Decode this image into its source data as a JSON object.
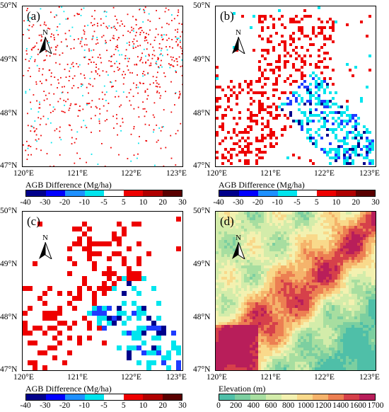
{
  "panels": [
    {
      "id": "a",
      "label": "(a)",
      "kind": "difference",
      "density": "sparse scattered single pixels (mostly red, some cyan)",
      "lat_ticks": [
        "50°N",
        "49°N",
        "48°N",
        "47°N"
      ],
      "lon_ticks": [
        "120°E",
        "121°E",
        "122°E",
        "123°E"
      ],
      "colorbar": {
        "title": "AGB Difference (Mg/ha)",
        "ticks": [
          "-40",
          "-30",
          "-20",
          "-10",
          "-5",
          "5",
          "10",
          "20",
          "30"
        ],
        "colors": [
          "#00008b",
          "#0000ff",
          "#1e90ff",
          "#00e5ee",
          "#ffffff",
          "#ee0000",
          "#b00000",
          "#5a0000"
        ]
      }
    },
    {
      "id": "b",
      "label": "(b)",
      "kind": "difference",
      "density": "small blocks; red in west, cyan/blue along southeast",
      "lat_ticks": [
        "50°N",
        "49°N",
        "48°N",
        "47°N"
      ],
      "lon_ticks": [
        "120°E",
        "121°E",
        "122°E",
        "123°E"
      ],
      "colorbar": {
        "title": "AGB Difference (Mg/ha)",
        "ticks": [
          "-40",
          "-30",
          "-20",
          "-10",
          "-5",
          "5",
          "10",
          "20",
          "30"
        ],
        "colors": [
          "#00008b",
          "#0000ff",
          "#1e90ff",
          "#00e5ee",
          "#ffffff",
          "#ee0000",
          "#b00000",
          "#5a0000"
        ]
      }
    },
    {
      "id": "c",
      "label": "(c)",
      "kind": "difference",
      "density": "larger blocks; red in west, cyan/blue along southeast",
      "lat_ticks": [
        "50°N",
        "49°N",
        "48°N",
        "47°N"
      ],
      "lon_ticks": [
        "120°E",
        "121°E",
        "122°E",
        "123°E"
      ],
      "colorbar": {
        "title": "AGB Difference (Mg/ha)",
        "ticks": [
          "-40",
          "-30",
          "-20",
          "-10",
          "-5",
          "5",
          "10",
          "20",
          "30"
        ],
        "colors": [
          "#00008b",
          "#0000ff",
          "#1e90ff",
          "#00e5ee",
          "#ffffff",
          "#ee0000",
          "#b00000",
          "#5a0000"
        ]
      }
    },
    {
      "id": "d",
      "label": "(d)",
      "kind": "elevation",
      "lat_ticks": [
        "50°N",
        "49°N",
        "48°N",
        "47°N"
      ],
      "lon_ticks": [
        "120°E",
        "121°E",
        "122°E",
        "123°E"
      ],
      "colorbar": {
        "title": "Elevation (m)",
        "ticks": [
          "0",
          "200",
          "400",
          "600",
          "800",
          "1000",
          "1200",
          "1400",
          "1600",
          "1700"
        ],
        "colors": [
          "#4fbfa8",
          "#7ccfa0",
          "#a7dea0",
          "#d3ecaa",
          "#f3f1b0",
          "#f9d98b",
          "#f5b36b",
          "#ec7f52",
          "#d6404a",
          "#b81e5a"
        ]
      }
    }
  ],
  "north_arrow": {
    "letter": "N"
  }
}
